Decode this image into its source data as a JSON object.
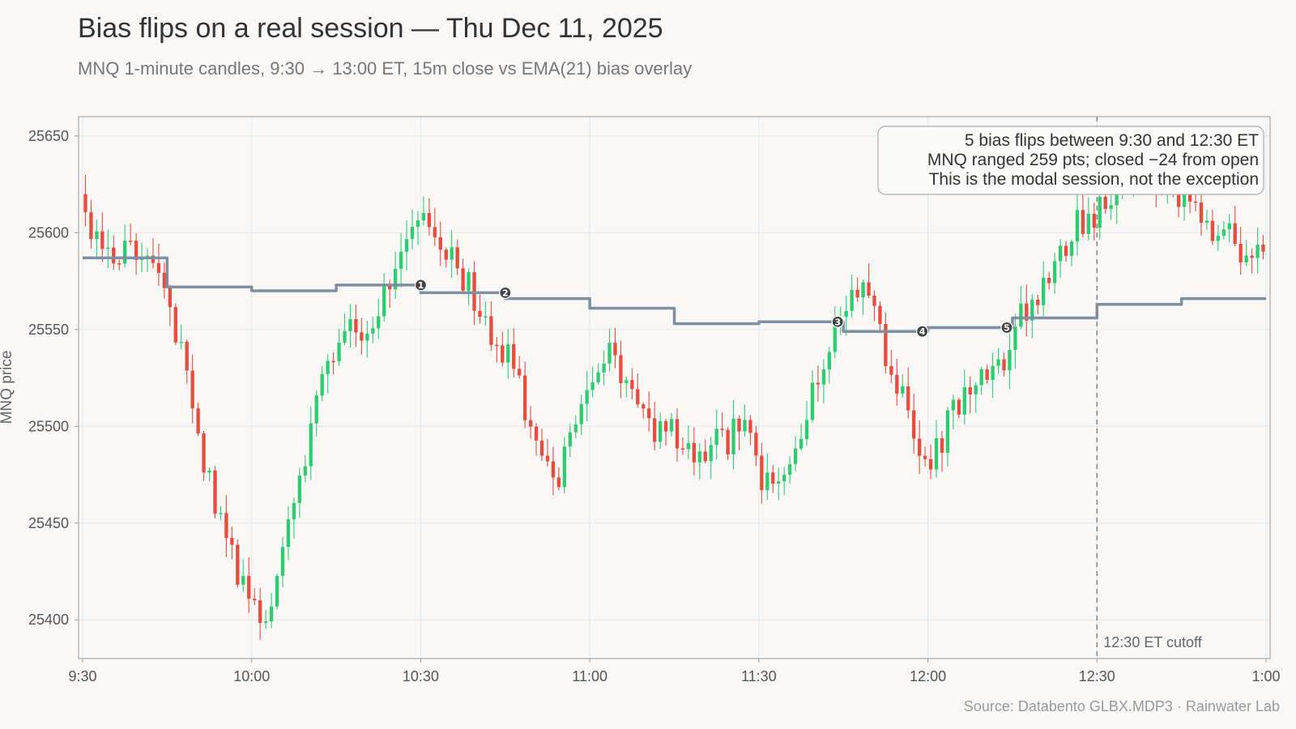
{
  "title": "Bias flips on a real session — Thu Dec 11, 2025",
  "subtitle": "MNQ 1-minute candles, 9:30 → 13:00 ET, 15m close vs EMA(21) bias overlay",
  "source": "Source: Databento GLBX.MDP3 · Rainwater Lab",
  "colors": {
    "up": "#2ecc71",
    "down": "#e74c3c",
    "ema": "#7f8fa3",
    "marker": "#444444",
    "grid": "#e6e6e6",
    "cutoff": "#888888"
  },
  "chart_data": {
    "type": "candlestick",
    "ylabel": "MNQ price",
    "xlabel": "",
    "x_start": "9:30",
    "x_end": "13:00",
    "minutes": 210,
    "ylim": [
      25380,
      25660
    ],
    "yticks": [
      25400,
      25450,
      25500,
      25550,
      25600,
      25650
    ],
    "xticks": [
      {
        "min": 0,
        "label": "9:30"
      },
      {
        "min": 30,
        "label": "10:00"
      },
      {
        "min": 60,
        "label": "10:30"
      },
      {
        "min": 90,
        "label": "11:00"
      },
      {
        "min": 120,
        "label": "11:30"
      },
      {
        "min": 150,
        "label": "12:00"
      },
      {
        "min": 180,
        "label": "12:30"
      },
      {
        "min": 210,
        "label": "1:00"
      }
    ],
    "grid": true,
    "close_anchors": [
      [
        0,
        25605
      ],
      [
        2,
        25598
      ],
      [
        4,
        25590
      ],
      [
        6,
        25585
      ],
      [
        8,
        25595
      ],
      [
        10,
        25590
      ],
      [
        13,
        25575
      ],
      [
        14,
        25570
      ],
      [
        16,
        25555
      ],
      [
        18,
        25530
      ],
      [
        20,
        25500
      ],
      [
        22,
        25475
      ],
      [
        24,
        25455
      ],
      [
        26,
        25440
      ],
      [
        28,
        25420
      ],
      [
        30,
        25405
      ],
      [
        32,
        25400
      ],
      [
        34,
        25410
      ],
      [
        36,
        25440
      ],
      [
        38,
        25470
      ],
      [
        40,
        25490
      ],
      [
        42,
        25515
      ],
      [
        44,
        25535
      ],
      [
        46,
        25545
      ],
      [
        48,
        25555
      ],
      [
        50,
        25545
      ],
      [
        52,
        25550
      ],
      [
        54,
        25570
      ],
      [
        56,
        25590
      ],
      [
        58,
        25605
      ],
      [
        60,
        25615
      ],
      [
        62,
        25605
      ],
      [
        64,
        25590
      ],
      [
        66,
        25585
      ],
      [
        68,
        25575
      ],
      [
        70,
        25565
      ],
      [
        72,
        25550
      ],
      [
        74,
        25540
      ],
      [
        76,
        25535
      ],
      [
        78,
        25515
      ],
      [
        80,
        25495
      ],
      [
        82,
        25480
      ],
      [
        84,
        25470
      ],
      [
        86,
        25490
      ],
      [
        88,
        25510
      ],
      [
        90,
        25520
      ],
      [
        92,
        25530
      ],
      [
        94,
        25545
      ],
      [
        96,
        25520
      ],
      [
        98,
        25510
      ],
      [
        100,
        25505
      ],
      [
        102,
        25495
      ],
      [
        104,
        25500
      ],
      [
        106,
        25495
      ],
      [
        108,
        25490
      ],
      [
        110,
        25485
      ],
      [
        112,
        25492
      ],
      [
        114,
        25490
      ],
      [
        116,
        25500
      ],
      [
        118,
        25495
      ],
      [
        120,
        25475
      ],
      [
        122,
        25470
      ],
      [
        124,
        25480
      ],
      [
        126,
        25490
      ],
      [
        128,
        25505
      ],
      [
        130,
        25520
      ],
      [
        132,
        25535
      ],
      [
        134,
        25555
      ],
      [
        136,
        25570
      ],
      [
        138,
        25575
      ],
      [
        140,
        25565
      ],
      [
        142,
        25540
      ],
      [
        144,
        25525
      ],
      [
        146,
        25520
      ],
      [
        148,
        25495
      ],
      [
        150,
        25475
      ],
      [
        152,
        25490
      ],
      [
        154,
        25505
      ],
      [
        156,
        25515
      ],
      [
        158,
        25520
      ],
      [
        160,
        25525
      ],
      [
        162,
        25528
      ],
      [
        164,
        25535
      ],
      [
        166,
        25555
      ],
      [
        168,
        25565
      ],
      [
        170,
        25570
      ],
      [
        172,
        25580
      ],
      [
        174,
        25590
      ],
      [
        176,
        25605
      ],
      [
        178,
        25605
      ],
      [
        180,
        25610
      ],
      [
        182,
        25615
      ],
      [
        184,
        25620
      ],
      [
        186,
        25630
      ],
      [
        188,
        25635
      ],
      [
        190,
        25625
      ],
      [
        192,
        25630
      ],
      [
        194,
        25620
      ],
      [
        196,
        25615
      ],
      [
        198,
        25610
      ],
      [
        200,
        25600
      ],
      [
        202,
        25605
      ],
      [
        204,
        25595
      ],
      [
        206,
        25585
      ],
      [
        208,
        25590
      ],
      [
        210,
        25595
      ]
    ],
    "ema_steps": [
      {
        "from": 0,
        "to": 15,
        "value": 25587
      },
      {
        "from": 15,
        "to": 30,
        "value": 25572
      },
      {
        "from": 30,
        "to": 45,
        "value": 25570
      },
      {
        "from": 45,
        "to": 60,
        "value": 25573
      },
      {
        "from": 60,
        "to": 75,
        "value": 25569
      },
      {
        "from": 75,
        "to": 90,
        "value": 25566
      },
      {
        "from": 90,
        "to": 105,
        "value": 25561
      },
      {
        "from": 105,
        "to": 120,
        "value": 25553
      },
      {
        "from": 120,
        "to": 135,
        "value": 25554
      },
      {
        "from": 135,
        "to": 150,
        "value": 25549
      },
      {
        "from": 150,
        "to": 165,
        "value": 25551
      },
      {
        "from": 165,
        "to": 180,
        "value": 25556
      },
      {
        "from": 180,
        "to": 195,
        "value": 25563
      },
      {
        "from": 195,
        "to": 210,
        "value": 25566
      }
    ],
    "flips": [
      {
        "label": "1",
        "min": 60,
        "price": 25573
      },
      {
        "label": "2",
        "min": 75,
        "price": 25569
      },
      {
        "label": "3",
        "min": 134,
        "price": 25554
      },
      {
        "label": "4",
        "min": 149,
        "price": 25549
      },
      {
        "label": "5",
        "min": 164,
        "price": 25551
      }
    ],
    "cutoff": {
      "min": 180,
      "label": "12:30 ET cutoff"
    },
    "annotation": [
      "5 bias flips between 9:30 and 12:30 ET",
      "MNQ ranged 259 pts; closed −24 from open",
      "This is the modal session, not the exception"
    ]
  }
}
